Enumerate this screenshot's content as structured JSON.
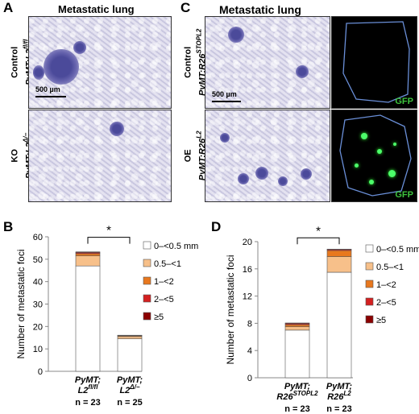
{
  "panels": {
    "A": {
      "letter": "A",
      "title": "Metastatic lung",
      "rows": [
        {
          "line1": "Control",
          "line2": "PyMT;L2",
          "sup": "fl/fl"
        },
        {
          "line1": "KO",
          "line2": "PyMT;L2",
          "sup": "Δ/−"
        }
      ],
      "scale": "500 µm"
    },
    "C": {
      "letter": "C",
      "title": "Metastatic lung",
      "rows": [
        {
          "line1": "Control",
          "line2": "PyMT;R26",
          "sup": "STOPL2"
        },
        {
          "line1": "OE",
          "line2": "PyMT;R26",
          "sup": "L2"
        }
      ],
      "scale": "500 µm",
      "gfp_label": "GFP"
    },
    "B": {
      "letter": "B"
    },
    "D": {
      "letter": "D"
    }
  },
  "legend": [
    {
      "label": "0–<0.5 mm",
      "color": "#ffffff"
    },
    {
      "label": "0.5–<1",
      "color": "#f7c08a"
    },
    {
      "label": "1–<2",
      "color": "#e8781e"
    },
    {
      "label": "2–<5",
      "color": "#d42020"
    },
    {
      "label": "≥5",
      "color": "#8b0000"
    }
  ],
  "chart_data": [
    {
      "type": "bar",
      "stacked": true,
      "ylabel": "Number of metastatic foci",
      "ylim": [
        0,
        60
      ],
      "yticks": [
        0,
        10,
        20,
        30,
        40,
        50,
        60
      ],
      "categories": [
        {
          "line1": "PyMT;",
          "line2": "L2",
          "sup": "fl/fl",
          "n": "n = 23"
        },
        {
          "line1": "PyMT;",
          "line2": "L2",
          "sup": "Δ/−",
          "n": "n = 25"
        }
      ],
      "series": [
        {
          "name": "0–<0.5 mm",
          "values": [
            47,
            14.5
          ]
        },
        {
          "name": "0.5–<1",
          "values": [
            4.5,
            1
          ]
        },
        {
          "name": "1–<2",
          "values": [
            1,
            0.4
          ]
        },
        {
          "name": "2–<5",
          "values": [
            0.5,
            0.1
          ]
        },
        {
          "name": "≥5",
          "values": [
            0.3,
            0.1
          ]
        }
      ],
      "significance": "*"
    },
    {
      "type": "bar",
      "stacked": true,
      "ylabel": "Number of metastatic foci",
      "ylim": [
        0,
        20
      ],
      "yticks": [
        0,
        4,
        8,
        12,
        16,
        20
      ],
      "categories": [
        {
          "line1": "PyMT;",
          "line2": "R26",
          "sup": "STOPL2",
          "n": "n = 23"
        },
        {
          "line1": "PyMT;",
          "line2": "R26",
          "sup": "L2",
          "n": "n = 23"
        }
      ],
      "series": [
        {
          "name": "0–<0.5 mm",
          "values": [
            7,
            15.5
          ]
        },
        {
          "name": "0.5–<1",
          "values": [
            0.5,
            2.3
          ]
        },
        {
          "name": "1–<2",
          "values": [
            0.3,
            0.9
          ]
        },
        {
          "name": "2–<5",
          "values": [
            0.15,
            0.15
          ]
        },
        {
          "name": "≥5",
          "values": [
            0.1,
            0.05
          ]
        }
      ],
      "significance": "*"
    }
  ]
}
